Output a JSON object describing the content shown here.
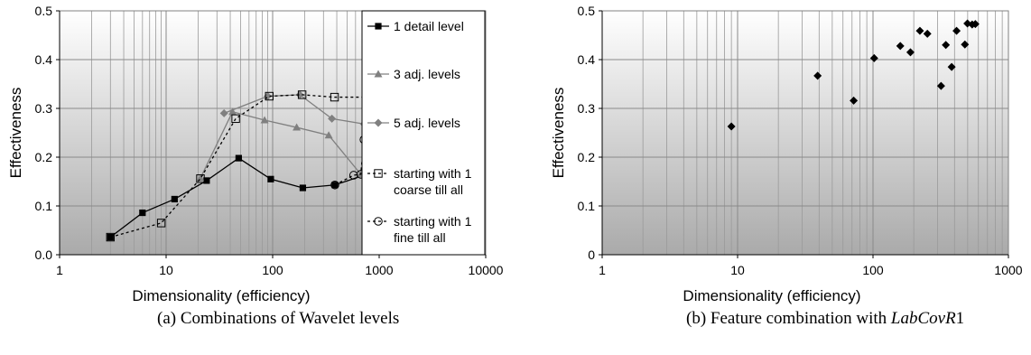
{
  "charts": [
    {
      "caption": "(a) Combinations of Wavelet levels",
      "legend_position": "right"
    },
    {
      "caption_prefix": "(b) Feature combination with ",
      "caption_italic": "LabCovR",
      "caption_suffix": "1",
      "legend_position": "none"
    }
  ],
  "chart_data": [
    {
      "type": "line",
      "xscale": "log",
      "xlim": [
        1,
        10000
      ],
      "ylim": [
        0,
        0.5
      ],
      "xlabel": "Dimensionality (efficiency)",
      "ylabel": "Effectiveness",
      "xticks": [
        "1",
        "10",
        "100",
        "1000",
        "10000"
      ],
      "yticks": [
        "0.0",
        "0.1",
        "0.2",
        "0.3",
        "0.4",
        "0.5"
      ],
      "grid": true,
      "series": [
        {
          "name": "1 detail level",
          "marker": "square-filled",
          "dashed": false,
          "color": "#000000",
          "x": [
            3,
            6,
            12,
            24,
            48,
            96,
            192,
            384,
            768
          ],
          "y": [
            0.036,
            0.086,
            0.114,
            0.152,
            0.198,
            0.155,
            0.137,
            0.143,
            0.165
          ]
        },
        {
          "name": "3 adj. levels",
          "marker": "triangle",
          "dashed": false,
          "color": "#808080",
          "x": [
            21,
            42,
            84,
            168,
            336,
            672
          ],
          "y": [
            0.157,
            0.293,
            0.276,
            0.261,
            0.245,
            0.165
          ]
        },
        {
          "name": "5 adj. levels",
          "marker": "diamond",
          "dashed": false,
          "color": "#808080",
          "x": [
            35,
            90,
            180,
            360,
            720
          ],
          "y": [
            0.29,
            0.325,
            0.328,
            0.279,
            0.268
          ]
        },
        {
          "name": "starting with 1 coarse till all",
          "marker": "square-open",
          "dashed": true,
          "color": "#000000",
          "x": [
            3,
            9,
            21,
            45,
            93,
            189,
            381,
            765
          ],
          "y": [
            0.036,
            0.065,
            0.156,
            0.279,
            0.325,
            0.328,
            0.323,
            0.323
          ]
        },
        {
          "name": "starting with 1 fine till all",
          "marker": "circle-open",
          "dashed": true,
          "color": "#000000",
          "x": [
            384,
            576,
            672,
            720,
            756,
            774,
            780
          ],
          "y": [
            0.143,
            0.163,
            0.165,
            0.236,
            0.3,
            0.322,
            0.328
          ]
        }
      ]
    },
    {
      "type": "scatter",
      "xscale": "log",
      "xlim": [
        1,
        1000
      ],
      "ylim": [
        0,
        0.5
      ],
      "xlabel": "Dimensionality (efficiency)",
      "ylabel": "Effectiveness",
      "xticks": [
        "1",
        "10",
        "100",
        "1000"
      ],
      "yticks": [
        "0",
        "0.1",
        "0.2",
        "0.3",
        "0.4",
        "0.5"
      ],
      "grid": true,
      "series": [
        {
          "marker": "diamond",
          "color": "#000000",
          "x": [
            9,
            39,
            72,
            102,
            159,
            189,
            222,
            252,
            318,
            345,
            381,
            414,
            477,
            498,
            540,
            570
          ],
          "y": [
            0.263,
            0.367,
            0.316,
            0.403,
            0.428,
            0.415,
            0.459,
            0.453,
            0.346,
            0.43,
            0.385,
            0.459,
            0.431,
            0.474,
            0.472,
            0.473
          ]
        }
      ]
    }
  ]
}
